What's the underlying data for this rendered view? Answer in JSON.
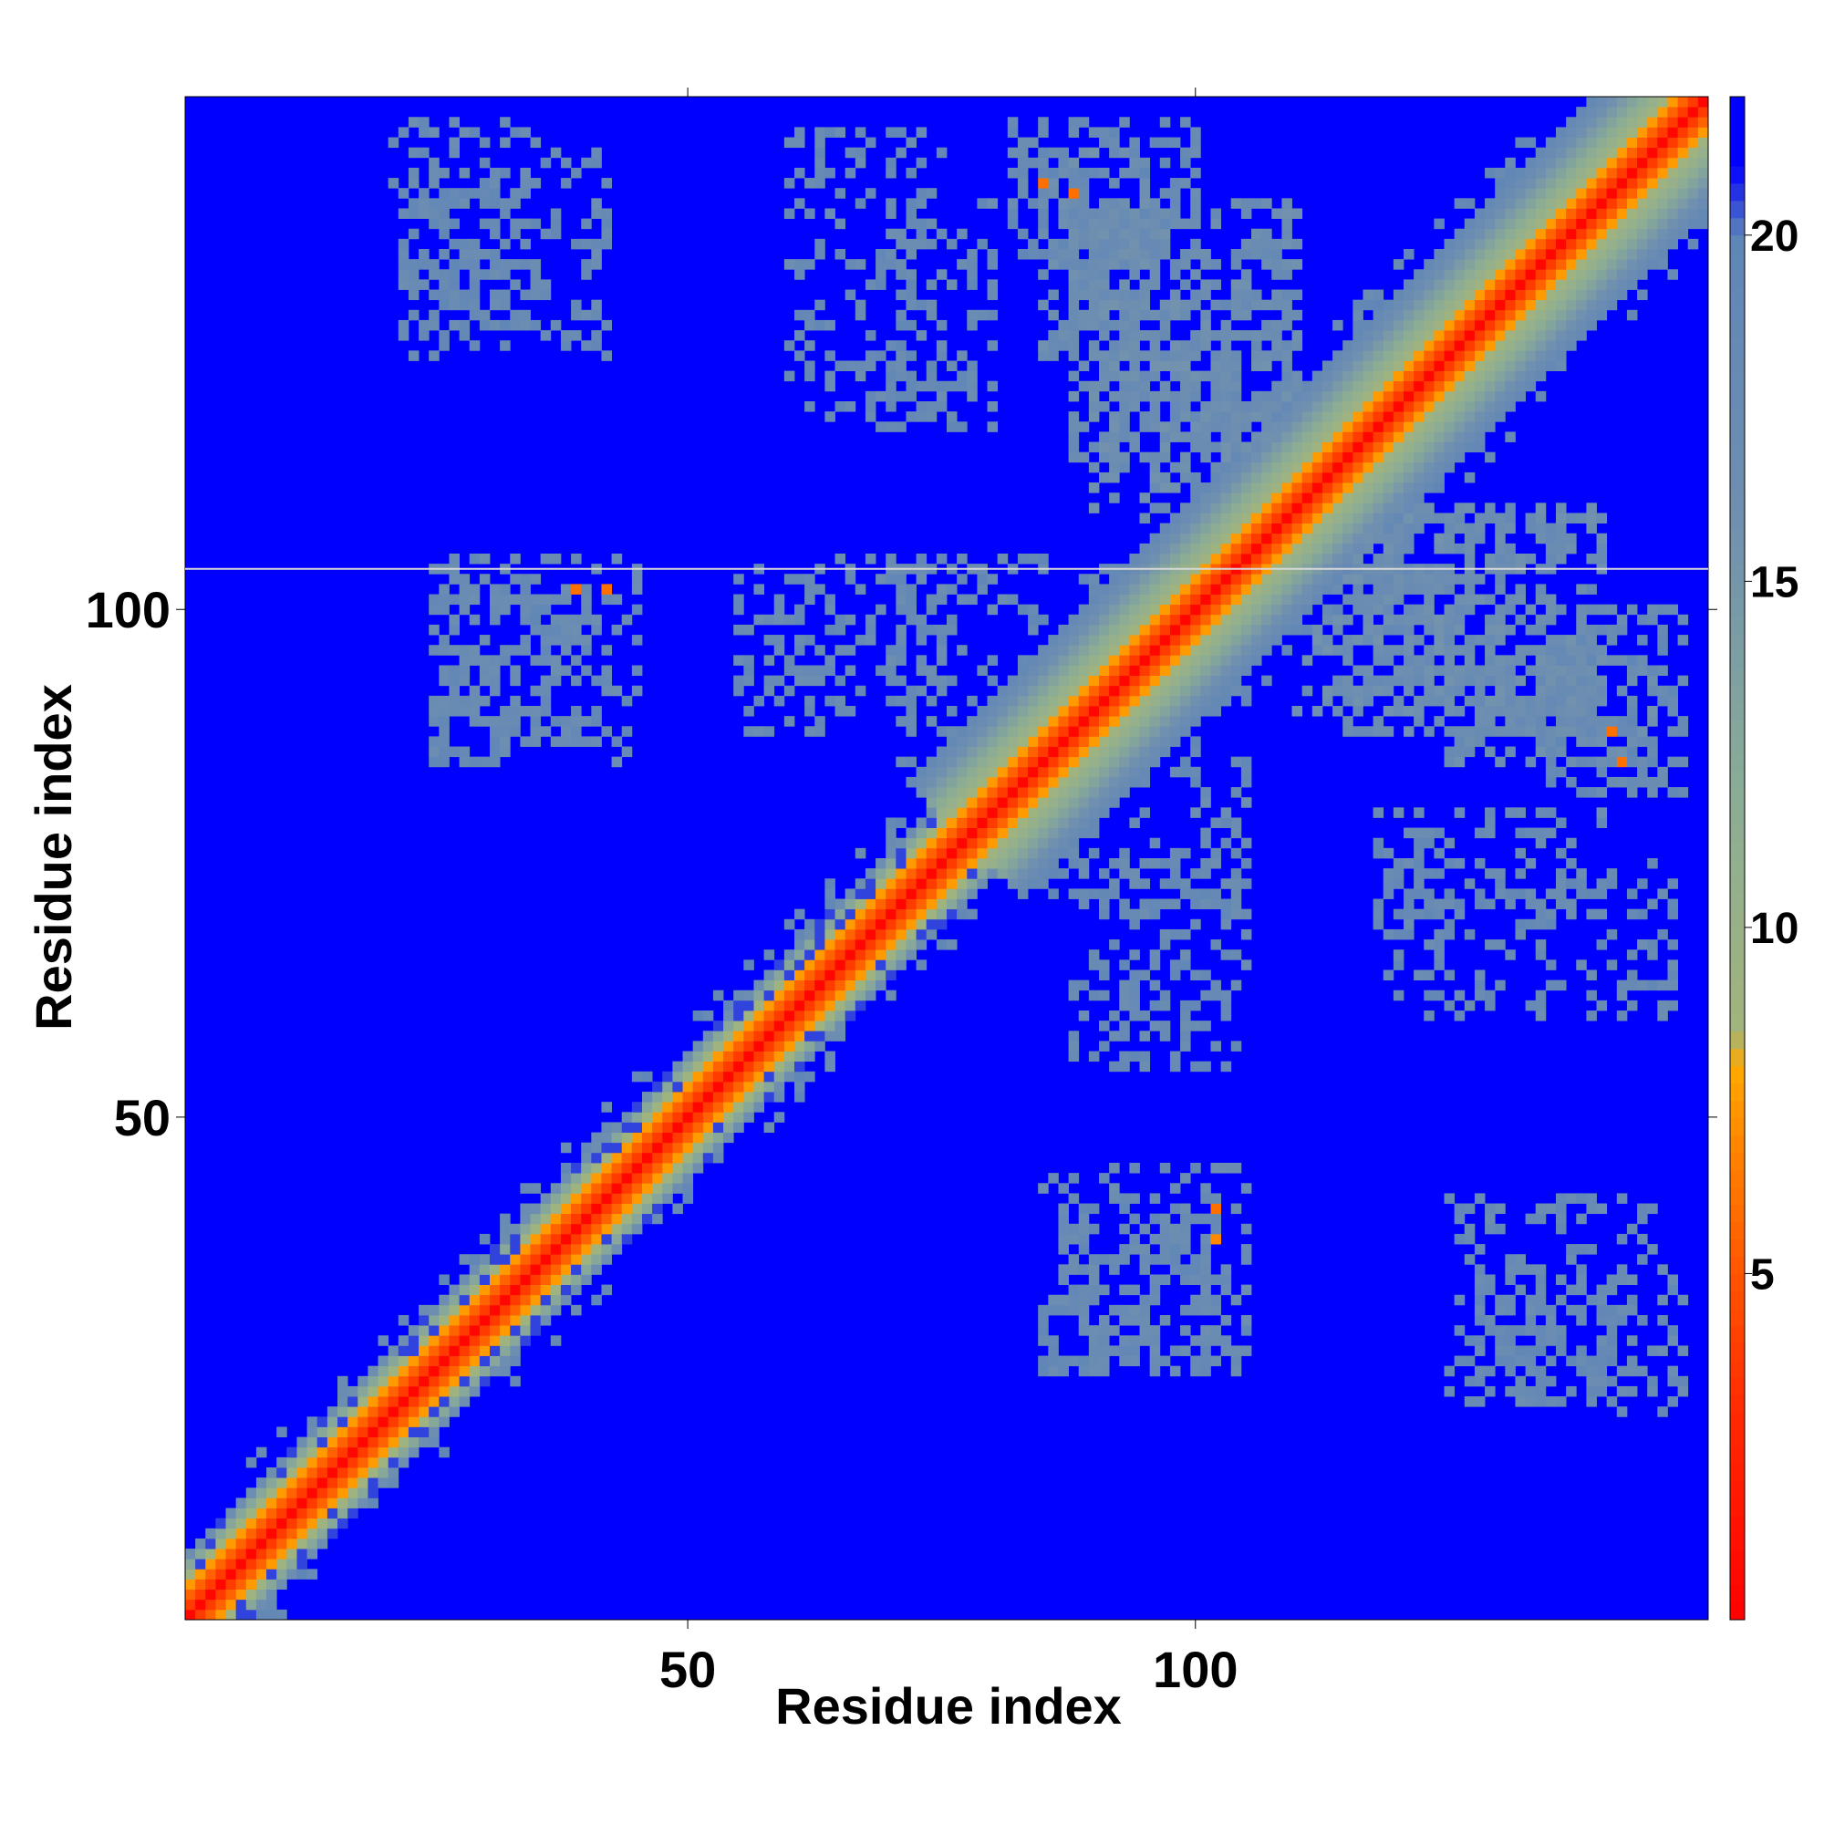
{
  "chart_data": {
    "type": "heatmap",
    "title": "",
    "xlabel": "Residue index",
    "ylabel": "Residue index",
    "n_residues": 150,
    "xlim": [
      1,
      150
    ],
    "ylim": [
      1,
      150
    ],
    "x_ticks": [
      50,
      100
    ],
    "y_ticks": [
      50,
      100
    ],
    "colorbar": {
      "min": 0,
      "max": 22,
      "ticks": [
        5,
        10,
        15,
        20
      ],
      "stops": [
        {
          "value": 0,
          "color": "#ff0000"
        },
        {
          "value": 3,
          "color": "#ff2a00"
        },
        {
          "value": 5,
          "color": "#ff5500"
        },
        {
          "value": 7,
          "color": "#ff8a00"
        },
        {
          "value": 8,
          "color": "#ffaa00"
        },
        {
          "value": 8.5,
          "color": "#a2b47c"
        },
        {
          "value": 12,
          "color": "#8aac96"
        },
        {
          "value": 16,
          "color": "#6f8fb0"
        },
        {
          "value": 20,
          "color": "#5f86b8"
        },
        {
          "value": 21,
          "color": "#0000ff"
        }
      ]
    },
    "background_value": 22,
    "diagonal_band": [
      {
        "from": 1,
        "to": 77,
        "half_width": 6
      },
      {
        "from": 77,
        "to": 150,
        "half_width": 11
      }
    ],
    "contact_regions": [
      {
        "x": [
          21,
          35
        ],
        "y": [
          128,
          148
        ],
        "value": 18,
        "density": 0.3
      },
      {
        "x": [
          60,
          75
        ],
        "y": [
          118,
          147
        ],
        "value": 18,
        "density": 0.25
      },
      {
        "x": [
          82,
          100
        ],
        "y": [
          135,
          148
        ],
        "value": 18,
        "density": 0.45
      },
      {
        "x": [
          88,
          110
        ],
        "y": [
          115,
          140
        ],
        "value": 17,
        "density": 0.5
      },
      {
        "x": [
          25,
          40
        ],
        "y": [
          85,
          105
        ],
        "value": 18,
        "density": 0.3
      },
      {
        "x": [
          55,
          75
        ],
        "y": [
          88,
          105
        ],
        "value": 18,
        "density": 0.3
      },
      {
        "x": [
          110,
          130
        ],
        "y": [
          90,
          110
        ],
        "value": 17,
        "density": 0.45
      },
      {
        "x": [
          125,
          145
        ],
        "y": [
          85,
          95
        ],
        "value": 17,
        "density": 0.4
      },
      {
        "x": [
          88,
          105
        ],
        "y": [
          70,
          85
        ],
        "value": 18,
        "density": 0.25
      },
      {
        "x": [
          118,
          140
        ],
        "y": [
          70,
          80
        ],
        "value": 18,
        "density": 0.3
      },
      {
        "x": [
          85,
          105
        ],
        "y": [
          25,
          45
        ],
        "value": 18,
        "density": 0.25
      },
      {
        "x": [
          125,
          145
        ],
        "y": [
          22,
          42
        ],
        "value": 18,
        "density": 0.3
      }
    ],
    "hotspots": [
      {
        "x": 39,
        "y": 102,
        "value": 6
      },
      {
        "x": 42,
        "y": 102,
        "value": 6
      },
      {
        "x": 102,
        "y": 41,
        "value": 6
      },
      {
        "x": 102,
        "y": 38,
        "value": 7
      },
      {
        "x": 85,
        "y": 142,
        "value": 6
      },
      {
        "x": 88,
        "y": 141,
        "value": 6
      },
      {
        "x": 141,
        "y": 88,
        "value": 6
      },
      {
        "x": 142,
        "y": 85,
        "value": 6
      }
    ],
    "grid": false
  }
}
